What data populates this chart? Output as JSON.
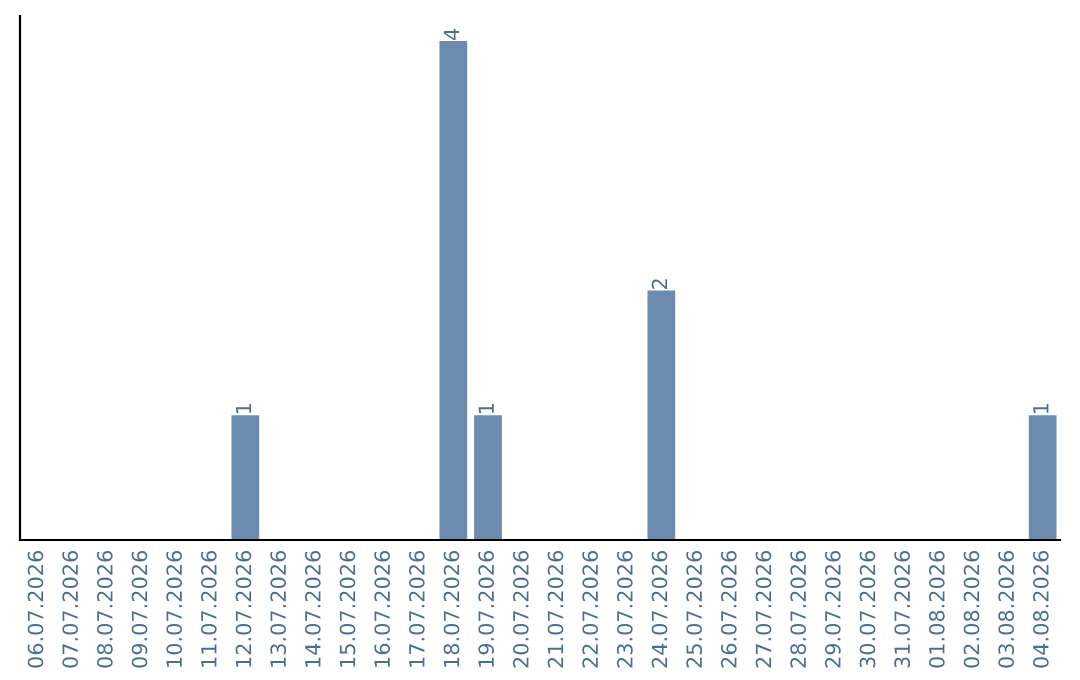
{
  "chart_data": {
    "type": "bar",
    "categories": [
      "06.07.2026",
      "07.07.2026",
      "08.07.2026",
      "09.07.2026",
      "10.07.2026",
      "11.07.2026",
      "12.07.2026",
      "13.07.2026",
      "14.07.2026",
      "15.07.2026",
      "16.07.2026",
      "17.07.2026",
      "18.07.2026",
      "19.07.2026",
      "20.07.2026",
      "21.07.2026",
      "22.07.2026",
      "23.07.2026",
      "24.07.2026",
      "25.07.2026",
      "26.07.2026",
      "27.07.2026",
      "28.07.2026",
      "29.07.2026",
      "30.07.2026",
      "31.07.2026",
      "01.08.2026",
      "02.08.2026",
      "03.08.2026",
      "04.08.2026"
    ],
    "values": [
      0,
      0,
      0,
      0,
      0,
      0,
      1,
      0,
      0,
      0,
      0,
      0,
      4,
      1,
      0,
      0,
      0,
      0,
      2,
      0,
      0,
      0,
      0,
      0,
      0,
      0,
      0,
      0,
      0,
      1
    ],
    "value_labels": [
      null,
      null,
      null,
      null,
      null,
      null,
      "1",
      null,
      null,
      null,
      null,
      null,
      "4",
      "1",
      null,
      null,
      null,
      null,
      "2",
      null,
      null,
      null,
      null,
      null,
      null,
      null,
      null,
      null,
      null,
      "1"
    ],
    "color": "#6b8cae",
    "ylim": [
      0,
      4.2
    ],
    "tick_labels": "x",
    "grid": false,
    "legend": false
  }
}
